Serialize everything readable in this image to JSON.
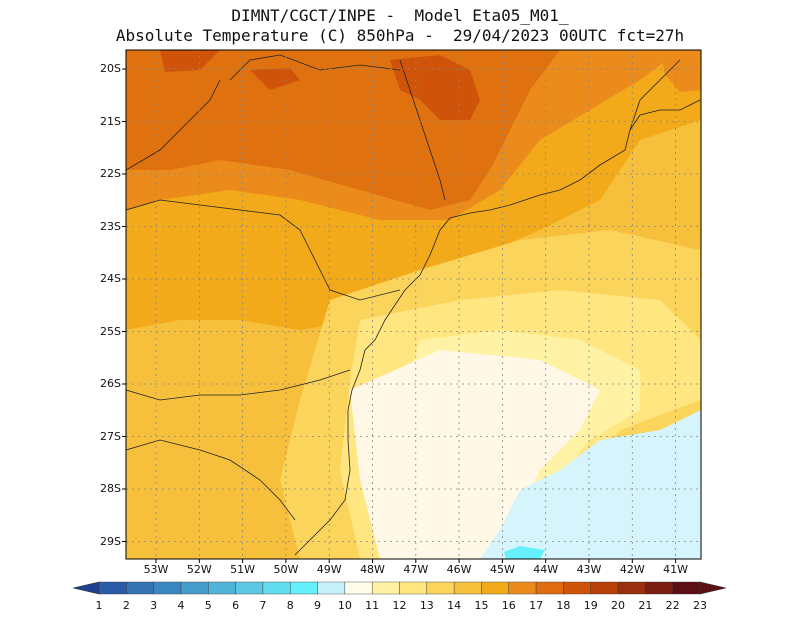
{
  "header": {
    "line1": "DIMNT/CGCT/INPE -  Model Eta05_M01_",
    "line2": "Absolute Temperature (C) 850hPa -  29/04/2023 00UTC fct=27h"
  },
  "axes": {
    "lat_labels": [
      "20S",
      "21S",
      "22S",
      "23S",
      "24S",
      "25S",
      "26S",
      "27S",
      "28S",
      "29S"
    ],
    "lon_labels": [
      "53W",
      "52W",
      "51W",
      "50W",
      "49W",
      "48W",
      "47W",
      "46W",
      "45W",
      "44W",
      "43W",
      "42W",
      "41W"
    ]
  },
  "colorbar": {
    "labels": [
      "1",
      "2",
      "3",
      "4",
      "5",
      "6",
      "7",
      "8",
      "9",
      "10",
      "11",
      "12",
      "13",
      "14",
      "15",
      "16",
      "17",
      "18",
      "19",
      "20",
      "21",
      "22",
      "23"
    ],
    "colors": [
      "#1f3f8f",
      "#2a5aa5",
      "#3573b3",
      "#3b88c1",
      "#469dcc",
      "#52b3d8",
      "#5dc8e4",
      "#62dcef",
      "#66f0fb",
      "#c8f2fb",
      "#fffcea",
      "#fff2a4",
      "#ffe680",
      "#fbd45c",
      "#f6c03d",
      "#f2a91a",
      "#eb8b1c",
      "#e06c10",
      "#cf5308",
      "#b8400b",
      "#9a2f10",
      "#7a1e12",
      "#5c0f14"
    ]
  },
  "field_colors": {
    "c17": "#e0710f",
    "c16": "#eb8b1c",
    "c15": "#f2a91a",
    "c14": "#f6c03d",
    "c13": "#fbd45c",
    "c12": "#ffe680",
    "c11": "#fff2a4",
    "c10": "#fff8e6",
    "c9": "#d6f4fb",
    "c8": "#66f0fb",
    "c18": "#cf5308"
  }
}
